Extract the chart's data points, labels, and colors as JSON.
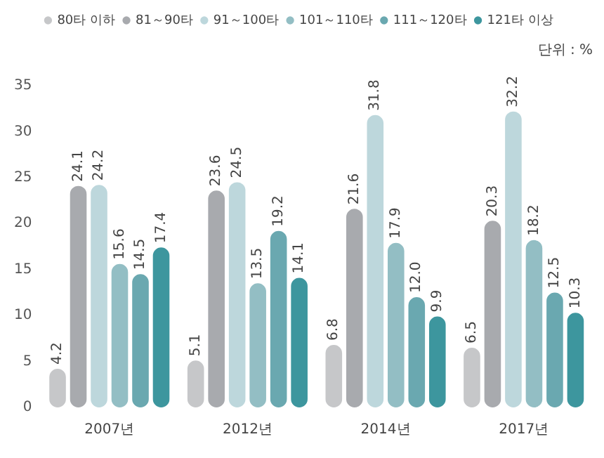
{
  "chart_data": {
    "type": "bar",
    "categories": [
      "2007년",
      "2012년",
      "2014년",
      "2017년"
    ],
    "series": [
      {
        "name": "80타 이하",
        "color": "#c6c7c9",
        "values": [
          4.2,
          5.1,
          6.8,
          6.5
        ],
        "value_labels": [
          "4.2",
          "5.1",
          "6.8",
          "6.5"
        ]
      },
      {
        "name": "81～90타",
        "color": "#a8aaae",
        "values": [
          24.1,
          23.6,
          21.6,
          20.3
        ],
        "value_labels": [
          "24.1",
          "23.6",
          "21.6",
          "20.3"
        ]
      },
      {
        "name": "91～100타",
        "color": "#bdd7dc",
        "values": [
          24.2,
          24.5,
          31.8,
          32.2
        ],
        "value_labels": [
          "24.2",
          "24.5",
          "31.8",
          "32.2"
        ]
      },
      {
        "name": "101～110타",
        "color": "#93bec4",
        "values": [
          15.6,
          13.5,
          17.9,
          18.2
        ],
        "value_labels": [
          "15.6",
          "13.5",
          "17.9",
          "18.2"
        ]
      },
      {
        "name": "111～120타",
        "color": "#6aa8b0",
        "values": [
          14.5,
          19.2,
          12.0,
          12.5
        ],
        "value_labels": [
          "14.5",
          "19.2",
          "12.0",
          "12.5"
        ]
      },
      {
        "name": "121타 이상",
        "color": "#3d969e",
        "values": [
          17.4,
          14.1,
          9.9,
          10.3
        ],
        "value_labels": [
          "17.4",
          "14.1",
          "9.9",
          "10.3"
        ]
      }
    ],
    "ylim": [
      0,
      35
    ],
    "yticks": [
      0,
      5,
      10,
      15,
      20,
      25,
      30,
      35
    ],
    "grid": false,
    "legend": "top",
    "annotations": [
      "단위 : %"
    ]
  }
}
